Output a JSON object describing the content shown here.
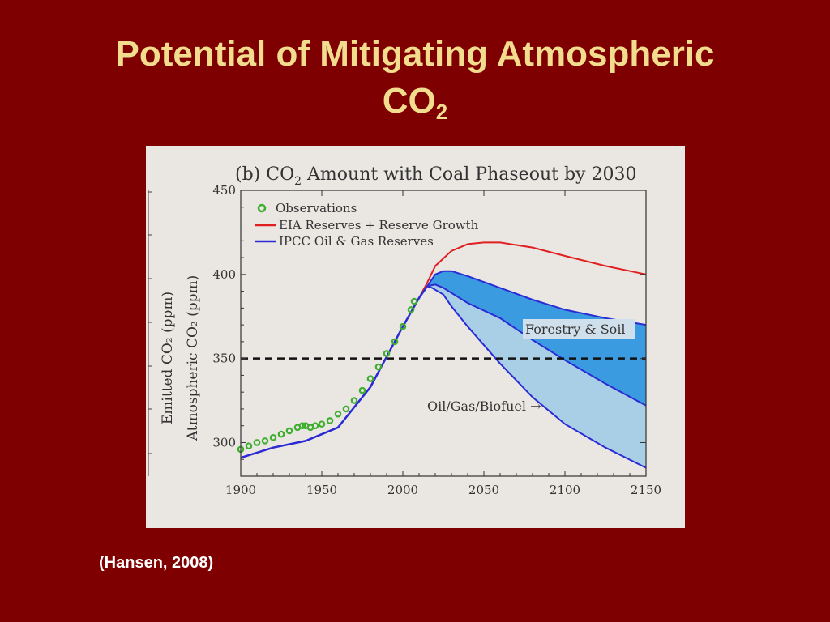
{
  "slide": {
    "title_main": "Potential of Mitigating Atmospheric",
    "title_co": "CO",
    "title_sub": "2",
    "citation": "(Hansen, 2008)"
  },
  "chart_data": {
    "type": "line",
    "title_prefix": "(b)  CO",
    "title_sub": "2",
    "title_suffix": " Amount with Coal Phaseout by 2030",
    "ylabel_left": "Emitted CO₂ (ppm)",
    "ylabel": "Atmospheric CO₂ (ppm)",
    "xlim": [
      1900,
      2150
    ],
    "ylim": [
      280,
      450
    ],
    "x_ticks": [
      1900,
      1950,
      2000,
      2050,
      2100,
      2150
    ],
    "y_ticks": [
      300,
      350,
      400,
      450
    ],
    "legend_position": "top-left",
    "colors": {
      "observations": "#3fae2f",
      "eia": "#e02020",
      "ipcc": "#2b2bd6",
      "forestry_fill": "#3a9be0",
      "oilgas_fill": "#a9cfe6",
      "reference": "#111111"
    },
    "series": [
      {
        "name": "Observations",
        "style": "markers",
        "x": [
          1900,
          1905,
          1910,
          1915,
          1920,
          1925,
          1930,
          1935,
          1938,
          1940,
          1943,
          1946,
          1950,
          1955,
          1960,
          1965,
          1970,
          1975,
          1980,
          1985,
          1990,
          1995,
          2000,
          2005,
          2007
        ],
        "y": [
          296,
          298,
          300,
          301,
          303,
          305,
          307,
          309,
          310,
          310,
          309,
          310,
          311,
          313,
          317,
          320,
          325,
          331,
          338,
          345,
          353,
          360,
          369,
          379,
          384
        ]
      },
      {
        "name": "EIA Reserves + Reserve Growth",
        "style": "line",
        "x": [
          1900,
          1920,
          1940,
          1960,
          1980,
          2000,
          2010,
          2015,
          2020,
          2030,
          2040,
          2050,
          2060,
          2080,
          2100,
          2125,
          2150
        ],
        "y": [
          291,
          297,
          301,
          309,
          333,
          369,
          386,
          395,
          405,
          414,
          418,
          419,
          419,
          416,
          411,
          405,
          400
        ]
      },
      {
        "name": "IPCC Oil & Gas Reserves",
        "style": "line",
        "x": [
          1900,
          1920,
          1940,
          1960,
          1980,
          2000,
          2010,
          2015
        ],
        "y": [
          291,
          297,
          301,
          309,
          333,
          369,
          386,
          393
        ]
      }
    ],
    "bands": [
      {
        "label": "Forestry & Soil",
        "upper_x": [
          2015,
          2020,
          2025,
          2030,
          2040,
          2060,
          2080,
          2100,
          2125,
          2150
        ],
        "upper_y": [
          393,
          400,
          402,
          402,
          399,
          392,
          385,
          379,
          374,
          370
        ],
        "lower_x": [
          2015,
          2020,
          2025,
          2030,
          2040,
          2060,
          2080,
          2100,
          2125,
          2150
        ],
        "lower_y": [
          393,
          394,
          392,
          389,
          383,
          374,
          361,
          349,
          335,
          322
        ]
      },
      {
        "label": "Oil/Gas/Biofuel",
        "upper_x": [
          2015,
          2020,
          2025,
          2030,
          2040,
          2060,
          2080,
          2100,
          2125,
          2150
        ],
        "upper_y": [
          393,
          394,
          392,
          389,
          383,
          374,
          361,
          349,
          335,
          322
        ],
        "lower_x": [
          2015,
          2018,
          2025,
          2030,
          2040,
          2060,
          2080,
          2100,
          2125,
          2150
        ],
        "lower_y": [
          393,
          392,
          388,
          381,
          369,
          347,
          327,
          311,
          297,
          285
        ]
      }
    ],
    "reference_line": {
      "y": 350,
      "style": "dashed"
    },
    "annotations": {
      "forestry": "Forestry & Soil",
      "oilgas": "Oil/Gas/Biofuel →"
    }
  }
}
